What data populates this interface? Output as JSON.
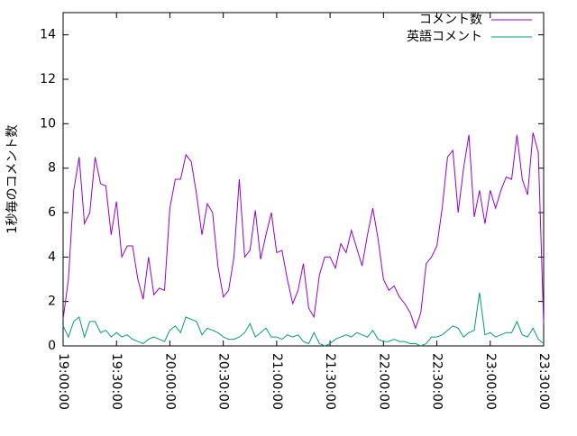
{
  "chart_data": {
    "type": "line",
    "y_label": "1秒毎のコメント数",
    "x": [
      "19:00:00",
      "19:03:00",
      "19:06:00",
      "19:09:00",
      "19:12:00",
      "19:15:00",
      "19:18:00",
      "19:21:00",
      "19:24:00",
      "19:27:00",
      "19:30:00",
      "19:33:00",
      "19:36:00",
      "19:39:00",
      "19:42:00",
      "19:45:00",
      "19:48:00",
      "19:51:00",
      "19:54:00",
      "19:57:00",
      "20:00:00",
      "20:03:00",
      "20:06:00",
      "20:09:00",
      "20:12:00",
      "20:15:00",
      "20:18:00",
      "20:21:00",
      "20:24:00",
      "20:27:00",
      "20:30:00",
      "20:33:00",
      "20:36:00",
      "20:39:00",
      "20:42:00",
      "20:45:00",
      "20:48:00",
      "20:51:00",
      "20:54:00",
      "20:57:00",
      "21:00:00",
      "21:03:00",
      "21:06:00",
      "21:09:00",
      "21:12:00",
      "21:15:00",
      "21:18:00",
      "21:21:00",
      "21:24:00",
      "21:27:00",
      "21:30:00",
      "21:33:00",
      "21:36:00",
      "21:39:00",
      "21:42:00",
      "21:45:00",
      "21:48:00",
      "21:51:00",
      "21:54:00",
      "21:57:00",
      "22:00:00",
      "22:03:00",
      "22:06:00",
      "22:09:00",
      "22:12:00",
      "22:15:00",
      "22:18:00",
      "22:21:00",
      "22:24:00",
      "22:27:00",
      "22:30:00",
      "22:33:00",
      "22:36:00",
      "22:39:00",
      "22:42:00",
      "22:45:00",
      "22:48:00",
      "22:51:00",
      "22:54:00",
      "22:57:00",
      "23:00:00",
      "23:03:00",
      "23:06:00",
      "23:09:00",
      "23:12:00",
      "23:15:00",
      "23:18:00",
      "23:21:00",
      "23:24:00",
      "23:27:00",
      "23:30:00"
    ],
    "series": [
      {
        "name": "コメント数",
        "color": "#9400d3",
        "values": [
          1.2,
          3,
          7,
          8.5,
          5.5,
          6,
          8.5,
          7.3,
          7.2,
          5,
          6.5,
          4,
          4.5,
          4.5,
          3,
          2.1,
          4,
          2.3,
          2.6,
          2.5,
          6.2,
          7.5,
          7.5,
          8.6,
          8.3,
          6.8,
          5,
          6.4,
          6,
          3.6,
          2.2,
          2.5,
          4,
          7.5,
          4,
          4.3,
          6.1,
          3.9,
          5,
          6,
          4.2,
          4.3,
          3,
          1.9,
          2.5,
          3.7,
          1.7,
          1.3,
          3.2,
          4,
          4,
          3.5,
          4.6,
          4.2,
          5.2,
          4.4,
          3.6,
          5,
          6.2,
          4.8,
          3,
          2.5,
          2.7,
          2.2,
          1.9,
          1.5,
          0.8,
          1.5,
          3.7,
          4,
          4.5,
          6.2,
          8.5,
          8.8,
          6,
          8,
          9.5,
          5.8,
          7,
          5.5,
          7,
          6.2,
          7,
          7.6,
          7.5,
          9.5,
          7.5,
          6.8,
          9.6,
          8.7,
          1
        ]
      },
      {
        "name": "英語コメント",
        "color": "#009e73",
        "values": [
          0.9,
          0.4,
          1.1,
          1.3,
          0.4,
          1.1,
          1.1,
          0.6,
          0.7,
          0.4,
          0.6,
          0.4,
          0.5,
          0.3,
          0.2,
          0.1,
          0.3,
          0.4,
          0.3,
          0.2,
          0.7,
          0.9,
          0.6,
          1.3,
          1.2,
          1.1,
          0.5,
          0.8,
          0.7,
          0.6,
          0.4,
          0.3,
          0.3,
          0.4,
          0.6,
          1,
          0.4,
          0.6,
          0.8,
          0.4,
          0.4,
          0.3,
          0.5,
          0.4,
          0.5,
          0.2,
          0.1,
          0.6,
          0.1,
          0,
          0.1,
          0.3,
          0.4,
          0.5,
          0.4,
          0.6,
          0.5,
          0.4,
          0.7,
          0.3,
          0.2,
          0.2,
          0.3,
          0.2,
          0.2,
          0.1,
          0.1,
          0,
          0.1,
          0.4,
          0.4,
          0.5,
          0.7,
          0.9,
          0.8,
          0.4,
          0.6,
          0.7,
          2.4,
          0.5,
          0.6,
          0.4,
          0.5,
          0.6,
          0.6,
          1.1,
          0.5,
          0.4,
          0.8,
          0.3,
          0.1
        ]
      }
    ],
    "xlim": [
      "19:00:00",
      "23:30:00"
    ],
    "xticks": [
      "19:00:00",
      "19:30:00",
      "20:00:00",
      "20:30:00",
      "21:00:00",
      "21:30:00",
      "22:00:00",
      "22:30:00",
      "23:00:00",
      "23:30:00"
    ],
    "ylim": [
      0,
      15
    ],
    "yticks": [
      0,
      2,
      4,
      6,
      8,
      10,
      12,
      14
    ],
    "legend": "top-right"
  }
}
